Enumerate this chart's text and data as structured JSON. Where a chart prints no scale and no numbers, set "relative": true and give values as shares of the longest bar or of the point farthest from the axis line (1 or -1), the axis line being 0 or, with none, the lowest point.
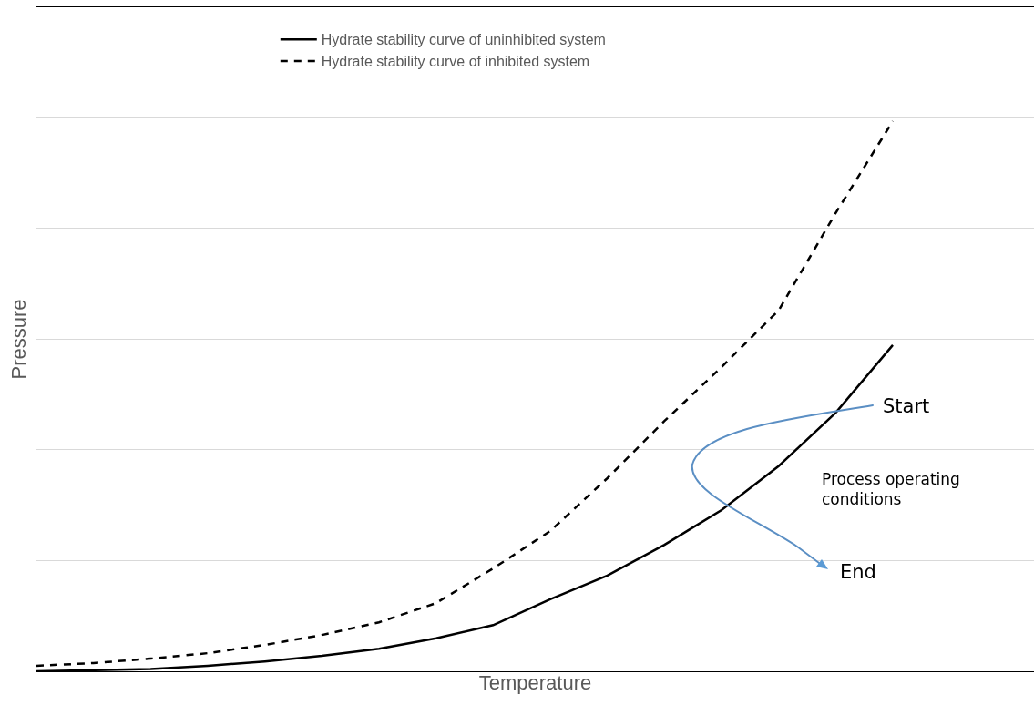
{
  "chart_data": {
    "type": "line",
    "relative": true,
    "xlabel": "Temperature",
    "ylabel": "Pressure",
    "grid": "y",
    "legend": "top",
    "marker": "none",
    "categories": [
      null,
      null,
      null,
      null,
      null,
      null,
      null,
      null,
      null,
      null,
      null,
      null,
      null,
      null,
      null,
      null
    ],
    "series": [
      {
        "name": "Hydrate stability curve of uninhibited system",
        "color": "#000000",
        "line_style": "solid",
        "values": [
          0,
          0.002,
          0.004,
          0.01,
          0.018,
          0.028,
          0.041,
          0.06,
          0.084,
          0.131,
          0.174,
          0.23,
          0.293,
          0.373,
          0.47,
          0.593
        ]
      },
      {
        "name": "Hydrate stability curve of inhibited system",
        "color": "#000000",
        "line_style": "dashed",
        "values": [
          0.01,
          0.015,
          0.023,
          0.033,
          0.048,
          0.066,
          0.089,
          0.124,
          0.187,
          0.255,
          0.351,
          0.455,
          0.553,
          0.656,
          0.833,
          1
        ]
      }
    ],
    "annotations": [
      "Start",
      "Process operating conditions",
      "End"
    ]
  }
}
